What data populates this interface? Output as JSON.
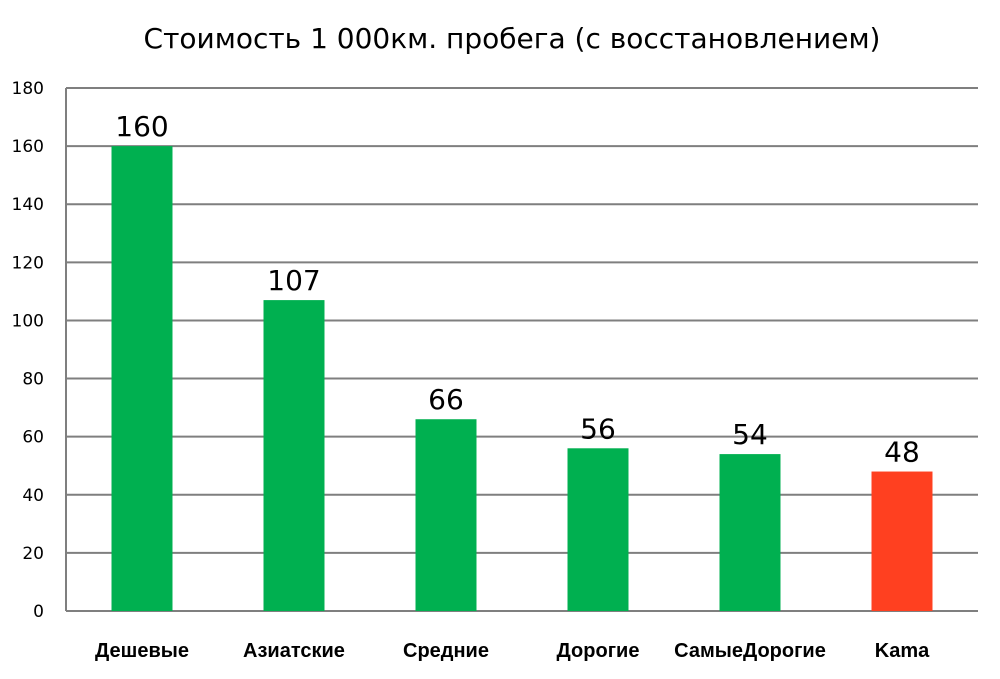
{
  "chart_data": {
    "type": "bar",
    "title": "Стоимость 1 000км. пробега (с восстановлением)",
    "categories": [
      "Дешевые",
      "Азиатские",
      "Средние",
      "Дорогие",
      "СамыеДорогие",
      "Kama"
    ],
    "values": [
      160,
      107,
      66,
      56,
      54,
      48
    ],
    "data_labels": [
      "160",
      "107",
      "66",
      "56",
      "54",
      "48"
    ],
    "colors": [
      "#00b050",
      "#00b050",
      "#00b050",
      "#00b050",
      "#00b050",
      "#ff4020"
    ],
    "ylim": [
      0,
      180
    ],
    "yticks": [
      "0",
      "20",
      "40",
      "60",
      "80",
      "100",
      "120",
      "140",
      "160",
      "180"
    ],
    "grid": true,
    "legend": "none"
  }
}
